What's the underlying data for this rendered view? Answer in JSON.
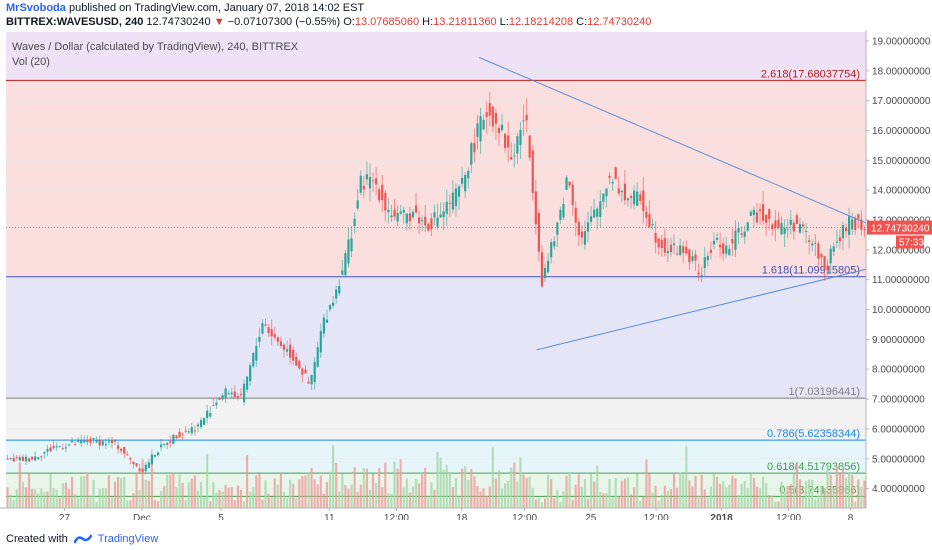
{
  "header": {
    "author": "MrSvoboda",
    "published": "published on TradingView.com, January 07, 2018 14:02 EST",
    "symbol": "BITTREX:WAVESUSD, 240",
    "last": "12.74730240",
    "change_arrow": "▼",
    "change": "−0.07107300 (−0.55%)",
    "o_label": "O:",
    "o": "13.07685060",
    "h_label": "H:",
    "h": "13.21811360",
    "l_label": "L:",
    "l": "12.18214208",
    "c_label": "C:",
    "c": "12.74730240"
  },
  "legend": {
    "title": "Waves / Dollar (calculated by TradingView), 240, BITTREX",
    "vol": "Vol (20)"
  },
  "footer": {
    "created": "Created with",
    "brand": "TradingView"
  },
  "colors": {
    "up": "#26a69a",
    "down": "#ef5350",
    "trend": "#5b8fd6",
    "price_badge": "#ef5350",
    "vol_up": "#a5d6a7",
    "vol_down": "#ef9a9a"
  },
  "chart_data": {
    "type": "candlestick",
    "ylim": [
      3.35,
      19.3
    ],
    "y_ticks": [
      "19.00000000",
      "18.00000000",
      "17.00000000",
      "16.00000000",
      "15.00000000",
      "14.00000000",
      "13.00000000",
      "12.00000000",
      "11.00000000",
      "10.00000000",
      "9.00000000",
      "8.00000000",
      "7.00000000",
      "6.00000000",
      "5.00000000",
      "4.00000000"
    ],
    "y_tick_values": [
      19,
      18,
      17,
      16,
      15,
      14,
      13,
      12,
      11,
      10,
      9,
      8,
      7,
      6,
      5,
      4
    ],
    "x_ticks": [
      {
        "label": "27",
        "t": 0.068
      },
      {
        "label": "Dec",
        "t": 0.158
      },
      {
        "label": "5",
        "t": 0.25
      },
      {
        "label": "11",
        "t": 0.376
      },
      {
        "label": "12:00",
        "t": 0.454
      },
      {
        "label": "18",
        "t": 0.53
      },
      {
        "label": "12:00",
        "t": 0.603
      },
      {
        "label": "25",
        "t": 0.68
      },
      {
        "label": "12:00",
        "t": 0.756
      },
      {
        "label": "2018",
        "t": 0.832
      },
      {
        "label": "12:00",
        "t": 0.91
      },
      {
        "label": "8",
        "t": 0.982
      }
    ],
    "fib_levels": [
      {
        "label": "2.618(17.68037754)",
        "value": 17.68037754,
        "line": "#b71c1c",
        "fill": "#f9d3d3"
      },
      {
        "label": "1.618(11.09915805)",
        "value": 11.09915805,
        "line": "#3f51b5",
        "fill": "#dcdcf6"
      },
      {
        "label": "1(7.03196441)",
        "value": 7.03196441,
        "line": "#808080",
        "fill": "#eeeeee"
      },
      {
        "label": "0.786(5.62358344)",
        "value": 5.62358344,
        "line": "#1e88e5",
        "fill": "#ddf2f8"
      },
      {
        "label": "0.618(4.51793856)",
        "value": 4.51793856,
        "line": "#43a047",
        "fill": "#dff3e2"
      },
      {
        "label": "0.5(3.74135866)",
        "value": 3.74135866,
        "line": "#43a047",
        "fill": "#e4f6e6"
      }
    ],
    "top_fill": "#efe2f7",
    "trendlines": [
      {
        "t1": 0.55,
        "v1": 18.45,
        "t2": 1.0,
        "v2": 12.9
      },
      {
        "t1": 0.617,
        "v1": 8.65,
        "t2": 1.0,
        "v2": 11.35
      }
    ],
    "close_path": [
      [
        0,
        4.95
      ],
      [
        0.03,
        5.0
      ],
      [
        0.06,
        5.4
      ],
      [
        0.1,
        5.6
      ],
      [
        0.13,
        5.5
      ],
      [
        0.145,
        5.0
      ],
      [
        0.16,
        4.6
      ],
      [
        0.175,
        5.2
      ],
      [
        0.2,
        5.8
      ],
      [
        0.225,
        6.1
      ],
      [
        0.245,
        6.9
      ],
      [
        0.26,
        7.3
      ],
      [
        0.275,
        7.0
      ],
      [
        0.29,
        8.5
      ],
      [
        0.3,
        9.6
      ],
      [
        0.315,
        9.0
      ],
      [
        0.33,
        8.6
      ],
      [
        0.345,
        8.0
      ],
      [
        0.355,
        7.4
      ],
      [
        0.37,
        9.5
      ],
      [
        0.385,
        10.6
      ],
      [
        0.395,
        11.6
      ],
      [
        0.405,
        12.8
      ],
      [
        0.415,
        14.3
      ],
      [
        0.43,
        14.3
      ],
      [
        0.445,
        13.4
      ],
      [
        0.46,
        13.0
      ],
      [
        0.475,
        13.3
      ],
      [
        0.49,
        12.8
      ],
      [
        0.51,
        13.3
      ],
      [
        0.53,
        14.0
      ],
      [
        0.545,
        15.5
      ],
      [
        0.56,
        16.7
      ],
      [
        0.575,
        16.2
      ],
      [
        0.59,
        15.0
      ],
      [
        0.605,
        16.6
      ],
      [
        0.615,
        14.0
      ],
      [
        0.625,
        11.0
      ],
      [
        0.64,
        12.4
      ],
      [
        0.655,
        14.5
      ],
      [
        0.67,
        12.3
      ],
      [
        0.69,
        13.4
      ],
      [
        0.705,
        14.6
      ],
      [
        0.72,
        13.8
      ],
      [
        0.74,
        13.7
      ],
      [
        0.76,
        12.3
      ],
      [
        0.775,
        12.0
      ],
      [
        0.79,
        12.0
      ],
      [
        0.81,
        11.2
      ],
      [
        0.825,
        12.3
      ],
      [
        0.84,
        12.0
      ],
      [
        0.86,
        12.8
      ],
      [
        0.88,
        13.3
      ],
      [
        0.9,
        12.7
      ],
      [
        0.92,
        12.9
      ],
      [
        0.94,
        12.2
      ],
      [
        0.955,
        11.4
      ],
      [
        0.97,
        12.4
      ],
      [
        0.985,
        13.0
      ],
      [
        1.0,
        12.75
      ]
    ],
    "volume_label": "57:33",
    "last_price": 12.7473024,
    "last_price_label": "12.74730240"
  }
}
